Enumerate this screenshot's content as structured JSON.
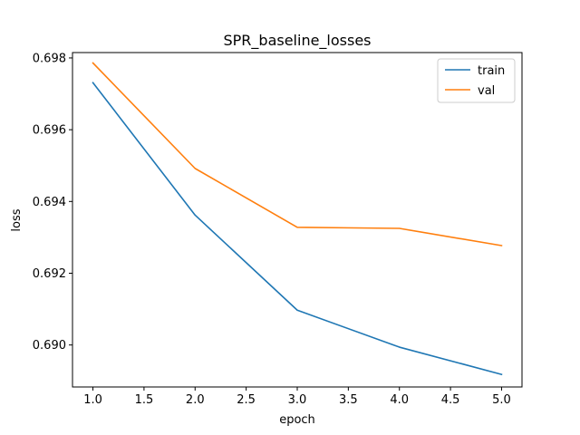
{
  "chart_data": {
    "type": "line",
    "title": "SPR_baseline_losses",
    "xlabel": "epoch",
    "ylabel": "loss",
    "x": [
      1.0,
      2.0,
      3.0,
      4.0,
      5.0
    ],
    "xlim": [
      0.8,
      5.2
    ],
    "ylim": [
      0.68883,
      0.69815
    ],
    "xticks": [
      1.0,
      1.5,
      2.0,
      2.5,
      3.0,
      3.5,
      4.0,
      4.5,
      5.0
    ],
    "xtick_labels": [
      "1.0",
      "1.5",
      "2.0",
      "2.5",
      "3.0",
      "3.5",
      "4.0",
      "4.5",
      "5.0"
    ],
    "yticks": [
      0.69,
      0.692,
      0.694,
      0.696,
      0.698
    ],
    "ytick_labels": [
      "0.690",
      "0.692",
      "0.694",
      "0.696",
      "0.698"
    ],
    "grid": false,
    "legend_position": "top-right",
    "series": [
      {
        "name": "train",
        "color": "#1f77b4",
        "values": [
          0.69731,
          0.69362,
          0.69097,
          0.68994,
          0.68918
        ]
      },
      {
        "name": "val",
        "color": "#ff7f0e",
        "values": [
          0.69786,
          0.69492,
          0.69328,
          0.69325,
          0.69277
        ]
      }
    ]
  }
}
